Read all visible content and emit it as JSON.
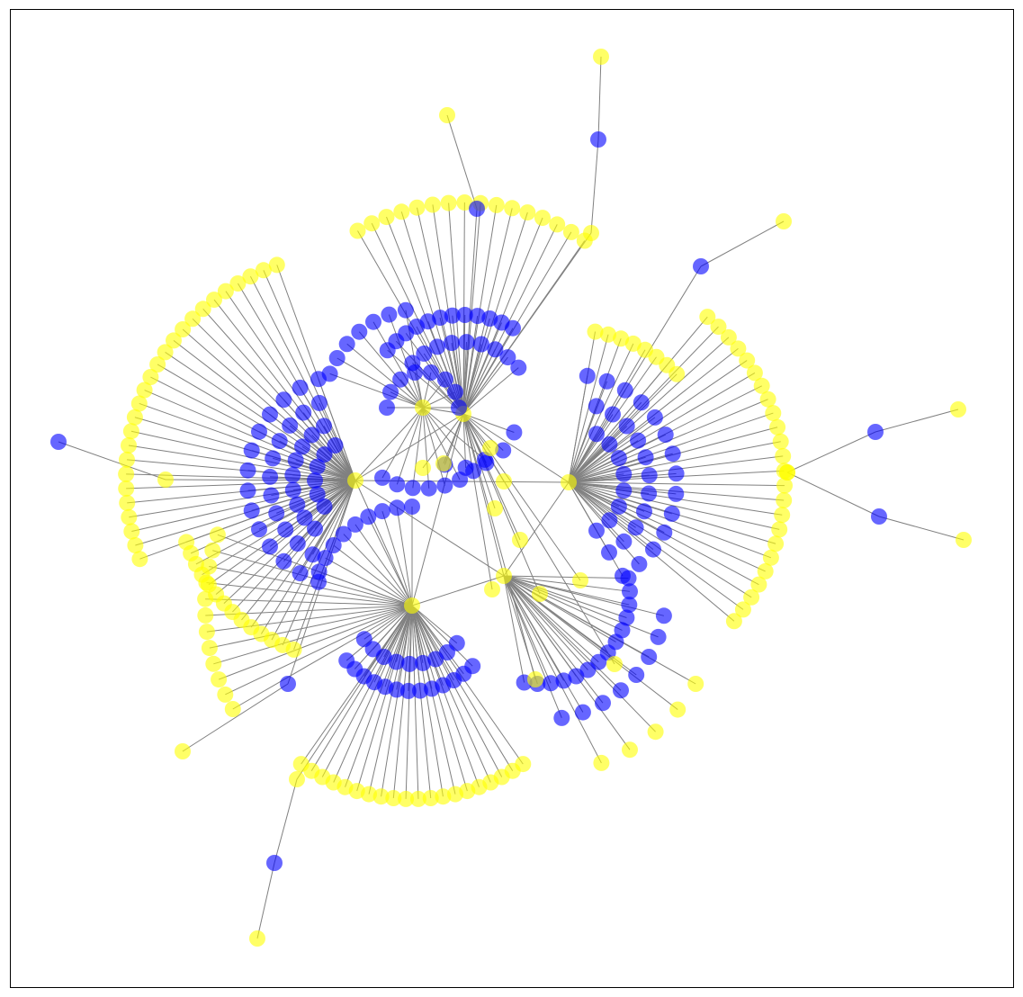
{
  "graph": {
    "node_colors": {
      "type_a": "#0000ff",
      "type_b": "#ffff00"
    },
    "edge_color": "#808080",
    "node_opacity": 0.6,
    "hub_count": 6,
    "background": "#ffffff"
  }
}
